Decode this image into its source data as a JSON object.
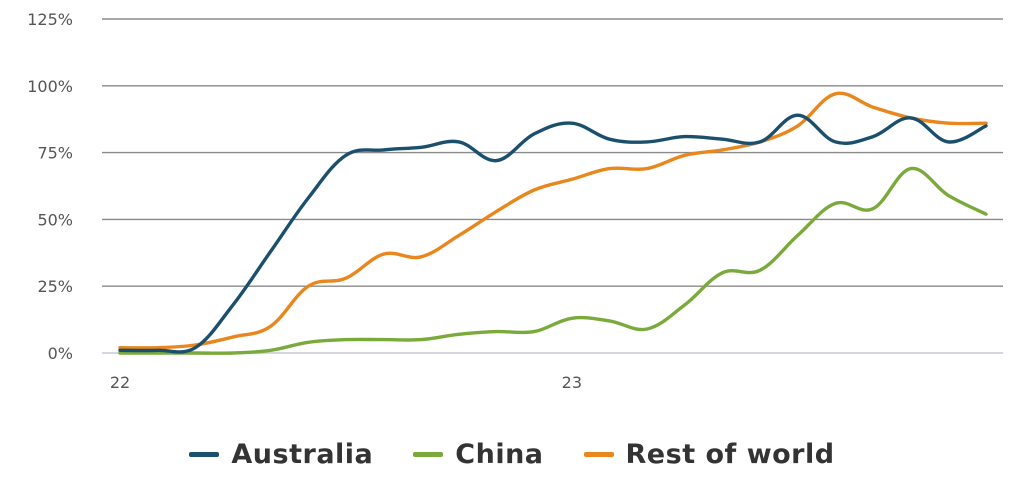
{
  "chart_data": {
    "type": "line",
    "title": "",
    "xlabel": "",
    "ylabel": "",
    "ylim": [
      0,
      125
    ],
    "y_ticks": [
      "0%",
      "25%",
      "50%",
      "75%",
      "100%",
      "125%"
    ],
    "y_tick_values": [
      0,
      25,
      50,
      75,
      100,
      125
    ],
    "x_ticks": [
      "22",
      "23"
    ],
    "x_tick_values": [
      0,
      12
    ],
    "xlim": [
      0,
      23
    ],
    "grid": true,
    "legend_position": "bottom",
    "x": [
      0,
      1,
      2,
      3,
      4,
      5,
      6,
      7,
      8,
      9,
      10,
      11,
      12,
      13,
      14,
      15,
      16,
      17,
      18,
      19,
      20,
      21,
      22,
      23
    ],
    "series": [
      {
        "name": "Australia",
        "color": "#1b4f6e",
        "values": [
          1,
          1,
          2,
          18,
          38,
          58,
          74,
          76,
          77,
          79,
          72,
          82,
          86,
          80,
          79,
          81,
          80,
          79,
          89,
          79,
          81,
          88,
          79,
          85
        ]
      },
      {
        "name": "China",
        "color": "#7aaa3c",
        "values": [
          0,
          0,
          0,
          0,
          1,
          4,
          5,
          5,
          5,
          7,
          8,
          8,
          13,
          12,
          9,
          18,
          30,
          31,
          44,
          56,
          54,
          69,
          59,
          52
        ]
      },
      {
        "name": "Rest of world",
        "color": "#e8871e",
        "values": [
          2,
          2,
          3,
          6,
          10,
          25,
          28,
          37,
          36,
          44,
          53,
          61,
          65,
          69,
          69,
          74,
          76,
          79,
          85,
          97,
          92,
          88,
          86,
          86
        ]
      }
    ]
  }
}
